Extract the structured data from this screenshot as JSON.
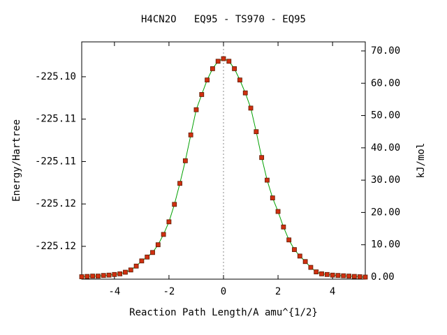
{
  "chart_data": {
    "type": "line",
    "title": "H4CN2O   EQ95 - TS970 - EQ95",
    "x_label": "Reaction Path Length/A amu^{1/2}",
    "y_label": "Energy/Hartree",
    "y2_label": "kJ/mol",
    "x": [
      -5.2,
      -5.0,
      -4.8,
      -4.6,
      -4.4,
      -4.2,
      -4.0,
      -3.8,
      -3.6,
      -3.4,
      -3.2,
      -3.0,
      -2.8,
      -2.6,
      -2.4,
      -2.2,
      -2.0,
      -1.8,
      -1.6,
      -1.4,
      -1.2,
      -1.0,
      -0.8,
      -0.6,
      -0.4,
      -0.2,
      0,
      0.2,
      0.4,
      0.6,
      0.8,
      1.0,
      1.2,
      1.4,
      1.6,
      1.8,
      2.0,
      2.2,
      2.4,
      2.6,
      2.8,
      3.0,
      3.2,
      3.4,
      3.6,
      3.8,
      4.0,
      4.2,
      4.4,
      4.6,
      4.8,
      5.0,
      5.2
    ],
    "series": [
      {
        "name": "kJ/mol",
        "color": "#00a000",
        "marker_color": "#d03010",
        "axis": "y2",
        "values": [
          0.1,
          0.2,
          0.3,
          0.3,
          0.5,
          0.6,
          0.8,
          1.0,
          1.5,
          2.2,
          3.4,
          5.0,
          6.2,
          7.6,
          10.0,
          13.2,
          17.1,
          22.5,
          29.0,
          36.0,
          44.0,
          51.8,
          56.5,
          61.0,
          64.5,
          66.8,
          67.6,
          66.8,
          64.5,
          61.0,
          57.0,
          52.3,
          45.0,
          37.0,
          30.0,
          24.5,
          20.3,
          15.5,
          11.5,
          8.5,
          6.5,
          4.8,
          3.0,
          1.6,
          1.0,
          0.8,
          0.6,
          0.5,
          0.4,
          0.3,
          0.2,
          0.1,
          0.0
        ]
      }
    ],
    "xlim": [
      -5.2,
      5.2
    ],
    "xticks": [
      -4,
      -2,
      0,
      2,
      4
    ],
    "ylim": [
      -225.12637,
      -225.09839
    ],
    "yticks": [
      {
        "value": -225.1225,
        "label": "-225.12"
      },
      {
        "value": -225.1175,
        "label": "-225.12"
      },
      {
        "value": -225.1125,
        "label": "-225.11"
      },
      {
        "value": -225.1075,
        "label": "-225.11"
      },
      {
        "value": -225.1025,
        "label": "-225.10"
      }
    ],
    "y2lim": [
      -0.65,
      72.8
    ],
    "y2ticks": [
      {
        "value": 0,
        "label": "0.00"
      },
      {
        "value": 10,
        "label": "10.00"
      },
      {
        "value": 20,
        "label": "20.00"
      },
      {
        "value": 30,
        "label": "30.00"
      },
      {
        "value": 40,
        "label": "40.00"
      },
      {
        "value": 50,
        "label": "50.00"
      },
      {
        "value": 60,
        "label": "60.00"
      },
      {
        "value": 70,
        "label": "70.00"
      }
    ]
  }
}
